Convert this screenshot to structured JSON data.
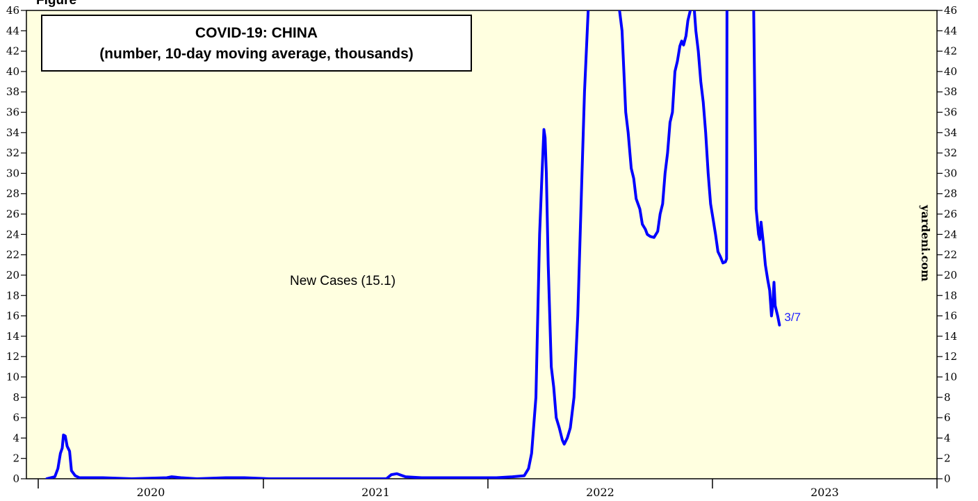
{
  "partial_label": "Figure",
  "chart_data": {
    "type": "line",
    "title": "COVID-19: CHINA",
    "subtitle": "(number, 10-day moving average, thousands)",
    "ylim": [
      0,
      46
    ],
    "y_ticks": [
      0,
      2,
      4,
      6,
      8,
      10,
      12,
      14,
      16,
      18,
      20,
      22,
      24,
      26,
      28,
      30,
      32,
      34,
      36,
      38,
      40,
      42,
      44,
      46
    ],
    "x_range": [
      "2020-01-01",
      "2024-01-01"
    ],
    "x_labels": [
      "2020",
      "2021",
      "2022",
      "2023"
    ],
    "grid": false,
    "background_color": "#ffffe0",
    "series": [
      {
        "name": "New Cases (15.1)",
        "color": "#0000ff",
        "end_label": "3/7",
        "points": [
          [
            "2020-01-15",
            0
          ],
          [
            "2020-01-28",
            0.2
          ],
          [
            "2020-02-02",
            1.0
          ],
          [
            "2020-02-06",
            2.5
          ],
          [
            "2020-02-09",
            3.0
          ],
          [
            "2020-02-11",
            4.3
          ],
          [
            "2020-02-14",
            4.2
          ],
          [
            "2020-02-17",
            3.2
          ],
          [
            "2020-02-21",
            2.7
          ],
          [
            "2020-02-24",
            0.8
          ],
          [
            "2020-03-01",
            0.3
          ],
          [
            "2020-03-08",
            0.1
          ],
          [
            "2020-04-15",
            0.1
          ],
          [
            "2020-06-01",
            0
          ],
          [
            "2020-07-28",
            0.1
          ],
          [
            "2020-08-05",
            0.2
          ],
          [
            "2020-08-20",
            0.1
          ],
          [
            "2020-09-15",
            0
          ],
          [
            "2020-11-01",
            0.1
          ],
          [
            "2020-12-01",
            0.1
          ],
          [
            "2021-01-10",
            0
          ],
          [
            "2021-04-01",
            0
          ],
          [
            "2021-07-20",
            0
          ],
          [
            "2021-07-28",
            0.4
          ],
          [
            "2021-08-06",
            0.5
          ],
          [
            "2021-08-20",
            0.2
          ],
          [
            "2021-09-15",
            0.1
          ],
          [
            "2021-12-01",
            0.1
          ],
          [
            "2022-01-15",
            0.1
          ],
          [
            "2022-02-10",
            0.2
          ],
          [
            "2022-03-01",
            0.3
          ],
          [
            "2022-03-08",
            1.0
          ],
          [
            "2022-03-13",
            2.5
          ],
          [
            "2022-03-20",
            8.0
          ],
          [
            "2022-03-26",
            24.0
          ],
          [
            "2022-03-30",
            30.0
          ],
          [
            "2022-04-02",
            34.3
          ],
          [
            "2022-04-04",
            33.5
          ],
          [
            "2022-04-06",
            30.0
          ],
          [
            "2022-04-09",
            21.0
          ],
          [
            "2022-04-14",
            11.0
          ],
          [
            "2022-04-18",
            9.0
          ],
          [
            "2022-04-22",
            6.0
          ],
          [
            "2022-04-27",
            5.0
          ],
          [
            "2022-05-02",
            3.8
          ],
          [
            "2022-05-05",
            3.4
          ],
          [
            "2022-05-10",
            4.0
          ],
          [
            "2022-05-15",
            5.0
          ],
          [
            "2022-05-21",
            8.0
          ],
          [
            "2022-05-27",
            16.0
          ],
          [
            "2022-06-03",
            30.0
          ],
          [
            "2022-06-07",
            38.0
          ],
          [
            "2022-06-13",
            46.0
          ],
          [
            "2022-06-18",
            60.0
          ],
          [
            "2022-07-29",
            60.0
          ],
          [
            "2022-08-03",
            46.0
          ],
          [
            "2022-08-07",
            44.0
          ],
          [
            "2022-08-13",
            36.0
          ],
          [
            "2022-08-17",
            34.0
          ],
          [
            "2022-08-22",
            30.5
          ],
          [
            "2022-08-26",
            29.5
          ],
          [
            "2022-08-30",
            27.5
          ],
          [
            "2022-09-05",
            26.5
          ],
          [
            "2022-09-09",
            25.0
          ],
          [
            "2022-09-14",
            24.5
          ],
          [
            "2022-09-17",
            24.0
          ],
          [
            "2022-09-22",
            23.8
          ],
          [
            "2022-09-28",
            23.7
          ],
          [
            "2022-10-04",
            24.3
          ],
          [
            "2022-10-08",
            26.0
          ],
          [
            "2022-10-12",
            27.0
          ],
          [
            "2022-10-16",
            30.0
          ],
          [
            "2022-10-20",
            32.0
          ],
          [
            "2022-10-24",
            35.0
          ],
          [
            "2022-10-28",
            36.0
          ],
          [
            "2022-11-01",
            40.0
          ],
          [
            "2022-11-05",
            41.0
          ],
          [
            "2022-11-09",
            42.5
          ],
          [
            "2022-11-12",
            43.0
          ],
          [
            "2022-11-15",
            42.6
          ],
          [
            "2022-11-19",
            43.5
          ],
          [
            "2022-11-22",
            45.0
          ],
          [
            "2022-11-26",
            46.0
          ],
          [
            "2022-11-29",
            46.8
          ],
          [
            "2022-12-02",
            46.5
          ],
          [
            "2022-12-05",
            44.0
          ],
          [
            "2022-12-09",
            42.0
          ],
          [
            "2022-12-13",
            39.0
          ],
          [
            "2022-12-17",
            37.0
          ],
          [
            "2022-12-21",
            34.0
          ],
          [
            "2022-12-25",
            30.0
          ],
          [
            "2022-12-29",
            27.0
          ],
          [
            "2023-01-02",
            25.5
          ],
          [
            "2023-01-06",
            24.0
          ],
          [
            "2023-01-10",
            22.3
          ],
          [
            "2023-01-14",
            21.8
          ],
          [
            "2023-01-18",
            21.2
          ],
          [
            "2023-01-22",
            21.3
          ],
          [
            "2023-01-24",
            21.6
          ],
          [
            "2023-01-25",
            60.0
          ],
          [
            "2023-03-05",
            60.0
          ],
          [
            "2023-03-09",
            46.0
          ],
          [
            "2023-03-13",
            26.5
          ],
          [
            "2023-03-17",
            24.0
          ],
          [
            "2023-03-19",
            23.5
          ],
          [
            "2023-03-21",
            25.2
          ],
          [
            "2023-03-25",
            23.0
          ],
          [
            "2023-03-28",
            21.0
          ],
          [
            "2023-04-01",
            19.5
          ],
          [
            "2023-04-04",
            18.5
          ],
          [
            "2023-04-07",
            16.0
          ],
          [
            "2023-04-09",
            17.0
          ],
          [
            "2023-04-11",
            19.3
          ],
          [
            "2023-04-13",
            17.0
          ],
          [
            "2023-04-17",
            16.0
          ],
          [
            "2023-04-20",
            15.1
          ]
        ]
      }
    ],
    "annotations": [
      {
        "text": "New Cases (15.1)"
      },
      {
        "text": "yardeni.com"
      }
    ]
  }
}
